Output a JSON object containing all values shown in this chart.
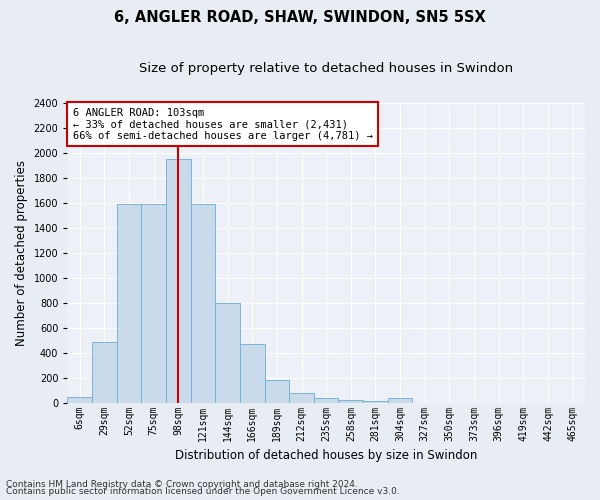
{
  "title": "6, ANGLER ROAD, SHAW, SWINDON, SN5 5SX",
  "subtitle": "Size of property relative to detached houses in Swindon",
  "xlabel": "Distribution of detached houses by size in Swindon",
  "ylabel": "Number of detached properties",
  "categories": [
    "6sqm",
    "29sqm",
    "52sqm",
    "75sqm",
    "98sqm",
    "121sqm",
    "144sqm",
    "166sqm",
    "189sqm",
    "212sqm",
    "235sqm",
    "258sqm",
    "281sqm",
    "304sqm",
    "327sqm",
    "350sqm",
    "373sqm",
    "396sqm",
    "419sqm",
    "442sqm",
    "465sqm"
  ],
  "values": [
    50,
    490,
    1590,
    1590,
    1950,
    1590,
    800,
    470,
    185,
    80,
    40,
    22,
    15,
    40,
    0,
    0,
    0,
    0,
    0,
    0,
    0
  ],
  "bar_color": "#c9daea",
  "bar_edge_color": "#6aafd6",
  "vline_index": 4,
  "vline_color": "#cc0000",
  "annotation_text": "6 ANGLER ROAD: 103sqm\n← 33% of detached houses are smaller (2,431)\n66% of semi-detached houses are larger (4,781) →",
  "annotation_box_color": "#ffffff",
  "annotation_box_edge": "#cc0000",
  "ylim": [
    0,
    2400
  ],
  "yticks": [
    0,
    200,
    400,
    600,
    800,
    1000,
    1200,
    1400,
    1600,
    1800,
    2000,
    2200,
    2400
  ],
  "footer1": "Contains HM Land Registry data © Crown copyright and database right 2024.",
  "footer2": "Contains public sector information licensed under the Open Government Licence v3.0.",
  "bg_color": "#e8edf3",
  "plot_bg_color": "#edf1f7",
  "title_fontsize": 10.5,
  "subtitle_fontsize": 9.5,
  "ylabel_fontsize": 8.5,
  "xlabel_fontsize": 8.5,
  "tick_fontsize": 7,
  "annotation_fontsize": 7.5,
  "footer_fontsize": 6.5
}
